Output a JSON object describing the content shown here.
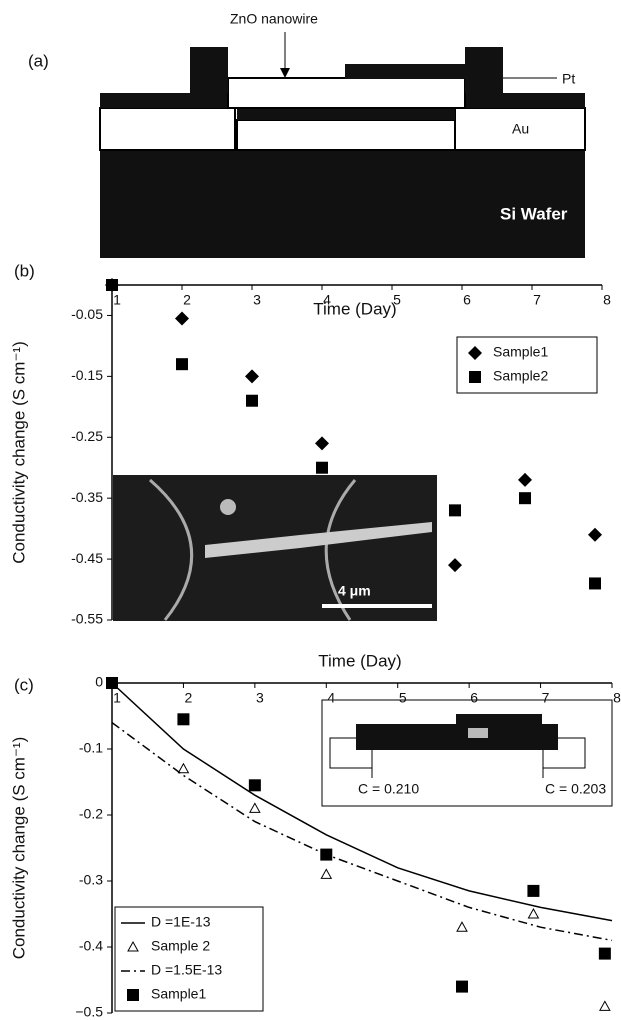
{
  "diagram": {
    "label": "(a)",
    "nanowire": "ZnO nanowire",
    "pt": "Pt",
    "au": "Au",
    "wafer": "Si Wafer"
  },
  "chart_data": [
    {
      "type": "scatter",
      "panel": "(b)",
      "x_label": "Time (Day)",
      "y_label": "Conductivity change (S cm⁻¹)",
      "xlim": [
        1,
        8
      ],
      "xticks": [
        1,
        2,
        3,
        4,
        5,
        6,
        7,
        8
      ],
      "ylim": [
        -0.55,
        0
      ],
      "yticks": [
        -0.05,
        -0.15,
        -0.25,
        -0.35,
        -0.45,
        -0.55
      ],
      "inset_label": "4 μm",
      "legend": "upper right",
      "series": [
        {
          "name": "Sample1",
          "color": "#000000",
          "marker": "diamond",
          "x": [
            1,
            2,
            3,
            4,
            5.9,
            6.9,
            7.9
          ],
          "values": [
            0,
            -0.055,
            -0.15,
            -0.26,
            -0.46,
            -0.32,
            -0.41
          ]
        },
        {
          "name": "Sample2",
          "color": "#000000",
          "marker": "square",
          "x": [
            1,
            2,
            3,
            4,
            5.9,
            6.9,
            7.9
          ],
          "values": [
            0,
            -0.13,
            -0.19,
            -0.3,
            -0.37,
            -0.35,
            -0.49
          ]
        }
      ]
    },
    {
      "type": "scatter",
      "panel": "(c)",
      "x_label": "Time (Day)",
      "y_label": "Conductivity change (S cm⁻¹)",
      "xlim": [
        1,
        8
      ],
      "xticks": [
        1,
        2,
        3,
        4,
        5,
        6,
        7,
        8
      ],
      "ylim": [
        -0.5,
        0
      ],
      "yticks": [
        0,
        -0.1,
        -0.2,
        -0.3,
        -0.4,
        {
          "value": -0.5,
          "label": "−0.5"
        }
      ],
      "inset_labels": [
        "C = 0.210",
        "C = 0.203"
      ],
      "legend": "lower left",
      "series": [
        {
          "name": "D =1E-13",
          "color": "#000000",
          "line": "solid",
          "x": [
            1,
            2,
            3,
            4,
            5,
            6,
            7,
            8
          ],
          "values": [
            0,
            -0.1,
            -0.17,
            -0.23,
            -0.28,
            -0.315,
            -0.34,
            -0.36
          ]
        },
        {
          "name": "Sample 2",
          "color": "#000000",
          "marker": "triangle",
          "x": [
            2,
            3,
            4,
            5.9,
            6.9,
            7.9
          ],
          "values": [
            -0.13,
            -0.19,
            -0.29,
            -0.37,
            -0.35,
            -0.49
          ]
        },
        {
          "name": "D =1.5E-13",
          "color": "#000000",
          "line": "dashdot",
          "x": [
            1,
            2,
            3,
            4,
            5,
            6,
            7,
            8
          ],
          "values": [
            -0.06,
            -0.14,
            -0.21,
            -0.26,
            -0.3,
            -0.34,
            -0.37,
            -0.39
          ]
        },
        {
          "name": "Sample1",
          "color": "#000000",
          "marker": "square",
          "x": [
            1,
            2,
            3,
            4,
            5.9,
            6.9,
            7.9
          ],
          "values": [
            0,
            -0.055,
            -0.155,
            -0.26,
            -0.46,
            -0.315,
            -0.41
          ]
        }
      ]
    }
  ]
}
